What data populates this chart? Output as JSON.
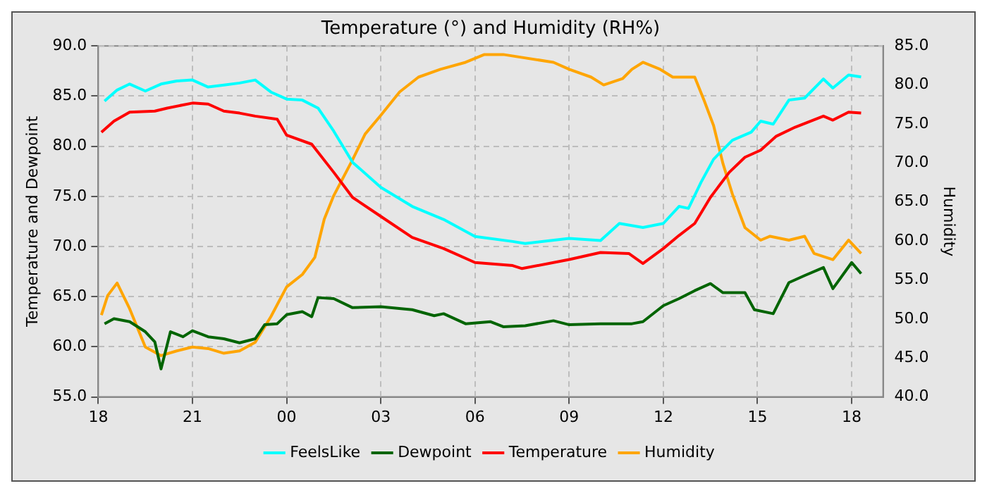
{
  "chart_data": {
    "type": "line",
    "title": "Temperature (°) and Humidity (RH%)",
    "ylabel": "Temperature and Dewpoint",
    "y2label": "Humidity",
    "xlim": [
      18,
      43
    ],
    "xticks": [
      {
        "value": 18,
        "label": "18"
      },
      {
        "value": 21,
        "label": "21"
      },
      {
        "value": 24,
        "label": "00"
      },
      {
        "value": 27,
        "label": "03"
      },
      {
        "value": 30,
        "label": "06"
      },
      {
        "value": 33,
        "label": "09"
      },
      {
        "value": 36,
        "label": "12"
      },
      {
        "value": 39,
        "label": "15"
      },
      {
        "value": 42,
        "label": "18"
      }
    ],
    "ylim": [
      55,
      90
    ],
    "yticks": [
      {
        "value": 55,
        "label": "55.0"
      },
      {
        "value": 60,
        "label": "60.0"
      },
      {
        "value": 65,
        "label": "65.0"
      },
      {
        "value": 70,
        "label": "70.0"
      },
      {
        "value": 75,
        "label": "75.0"
      },
      {
        "value": 80,
        "label": "80.0"
      },
      {
        "value": 85,
        "label": "85.0"
      },
      {
        "value": 90,
        "label": "90.0"
      }
    ],
    "y2lim": [
      40,
      85
    ],
    "y2ticks": [
      {
        "value": 40,
        "label": "40.0"
      },
      {
        "value": 45,
        "label": "45.0"
      },
      {
        "value": 50,
        "label": "50.0"
      },
      {
        "value": 55,
        "label": "55.0"
      },
      {
        "value": 60,
        "label": "60.0"
      },
      {
        "value": 65,
        "label": "65.0"
      },
      {
        "value": 70,
        "label": "70.0"
      },
      {
        "value": 75,
        "label": "75.0"
      },
      {
        "value": 80,
        "label": "80.0"
      },
      {
        "value": 85,
        "label": "85.0"
      }
    ],
    "grid": true,
    "legend": "bottom",
    "marker": "none",
    "line_style": "solid",
    "series": [
      {
        "name": "FeelsLike",
        "color": "#00ffff",
        "x": [
          18.2,
          18.6,
          19,
          19.5,
          20,
          20.5,
          21,
          21.5,
          22,
          22.5,
          23,
          23.5,
          24,
          24.5,
          25,
          25.5,
          26.1,
          27,
          28,
          29,
          30,
          31.2,
          31.6,
          33,
          34,
          34.6,
          35.35,
          36,
          36.5,
          36.8,
          37.2,
          37.6,
          38.2,
          38.8,
          39.1,
          39.5,
          40,
          40.5,
          41.1,
          41.4,
          41.9,
          42.3
        ],
        "values": [
          84.5,
          85.6,
          86.2,
          85.5,
          86.2,
          86.5,
          86.6,
          85.9,
          86.1,
          86.3,
          86.6,
          85.4,
          84.7,
          84.6,
          83.8,
          81.5,
          78.4,
          75.9,
          74,
          72.7,
          71,
          70.5,
          70.3,
          70.8,
          70.6,
          72.3,
          71.9,
          72.3,
          74,
          73.8,
          76.4,
          78.7,
          80.6,
          81.4,
          82.5,
          82.2,
          84.6,
          84.8,
          86.7,
          85.8,
          87.1,
          86.9
        ]
      },
      {
        "name": "Dewpoint",
        "color": "#006400",
        "x": [
          18.2,
          18.5,
          19,
          19.5,
          19.8,
          20,
          20.3,
          20.7,
          21,
          21.5,
          22,
          22.5,
          23,
          23.3,
          23.7,
          24,
          24.5,
          24.8,
          25,
          25.5,
          26.1,
          27,
          28,
          28.7,
          29,
          29.7,
          30.5,
          30.9,
          31.6,
          32.5,
          33,
          34,
          35,
          35.35,
          36,
          36.5,
          37,
          37.5,
          37.9,
          38.6,
          38.9,
          39.5,
          40,
          40.5,
          41.1,
          41.4,
          42,
          42.3
        ],
        "values": [
          62.3,
          62.8,
          62.5,
          61.5,
          60.5,
          57.8,
          61.5,
          61,
          61.6,
          61,
          60.8,
          60.4,
          60.8,
          62.2,
          62.3,
          63.2,
          63.5,
          63,
          64.9,
          64.8,
          63.9,
          64,
          63.7,
          63.1,
          63.3,
          62.3,
          62.5,
          62,
          62.1,
          62.6,
          62.2,
          62.3,
          62.3,
          62.5,
          64.1,
          64.8,
          65.6,
          66.3,
          65.4,
          65.4,
          63.7,
          63.3,
          66.4,
          67.1,
          67.9,
          65.8,
          68.4,
          67.3
        ]
      },
      {
        "name": "Temperature",
        "color": "#ff0000",
        "x": [
          18.1,
          18.5,
          19,
          19.8,
          20.2,
          21,
          21.5,
          22,
          22.5,
          23,
          23.7,
          24,
          24.8,
          25.5,
          26.1,
          27,
          28,
          29,
          30,
          31.2,
          31.5,
          33,
          34,
          34.9,
          35.35,
          36,
          36.5,
          37,
          37.5,
          38.1,
          38.6,
          39.1,
          39.6,
          40.2,
          41.1,
          41.4,
          41.9,
          42.3
        ],
        "values": [
          81.4,
          82.5,
          83.4,
          83.5,
          83.8,
          84.3,
          84.2,
          83.5,
          83.3,
          83,
          82.7,
          81.1,
          80.2,
          77.4,
          74.9,
          73,
          70.9,
          69.8,
          68.4,
          68.1,
          67.8,
          68.7,
          69.4,
          69.3,
          68.3,
          69.8,
          71.1,
          72.3,
          74.9,
          77.4,
          78.9,
          79.6,
          81,
          81.9,
          83,
          82.6,
          83.4,
          83.3
        ]
      },
      {
        "name": "Humidity",
        "color": "#ffa500",
        "axis": "y2",
        "x": [
          18.1,
          18.3,
          18.6,
          19,
          19.5,
          20,
          20.5,
          21,
          21.5,
          22,
          22.5,
          23,
          23.5,
          24,
          24.5,
          24.9,
          25.2,
          25.5,
          26.1,
          26.5,
          27,
          27.6,
          28.2,
          28.9,
          29.7,
          30.3,
          30.9,
          32.5,
          33,
          33.7,
          34.1,
          34.7,
          35,
          35.35,
          35.9,
          36.3,
          37,
          37.3,
          37.6,
          37.9,
          38.2,
          38.6,
          39.1,
          39.4,
          40,
          40.5,
          40.8,
          41.4,
          41.9,
          42.3
        ],
        "values": [
          50.5,
          53,
          54.6,
          51.3,
          46.4,
          45.3,
          45.9,
          46.4,
          46.2,
          45.6,
          45.9,
          47,
          50.3,
          54.1,
          55.7,
          57.9,
          62.8,
          65.8,
          70.4,
          73.7,
          76.1,
          79.1,
          81,
          82,
          82.9,
          83.9,
          83.9,
          82.9,
          82,
          81,
          80,
          80.8,
          82,
          82.9,
          82,
          81,
          81,
          78,
          74.8,
          69.9,
          66,
          61.7,
          60.1,
          60.6,
          60.1,
          60.6,
          58.4,
          57.6,
          60.1,
          58.4
        ]
      }
    ]
  }
}
